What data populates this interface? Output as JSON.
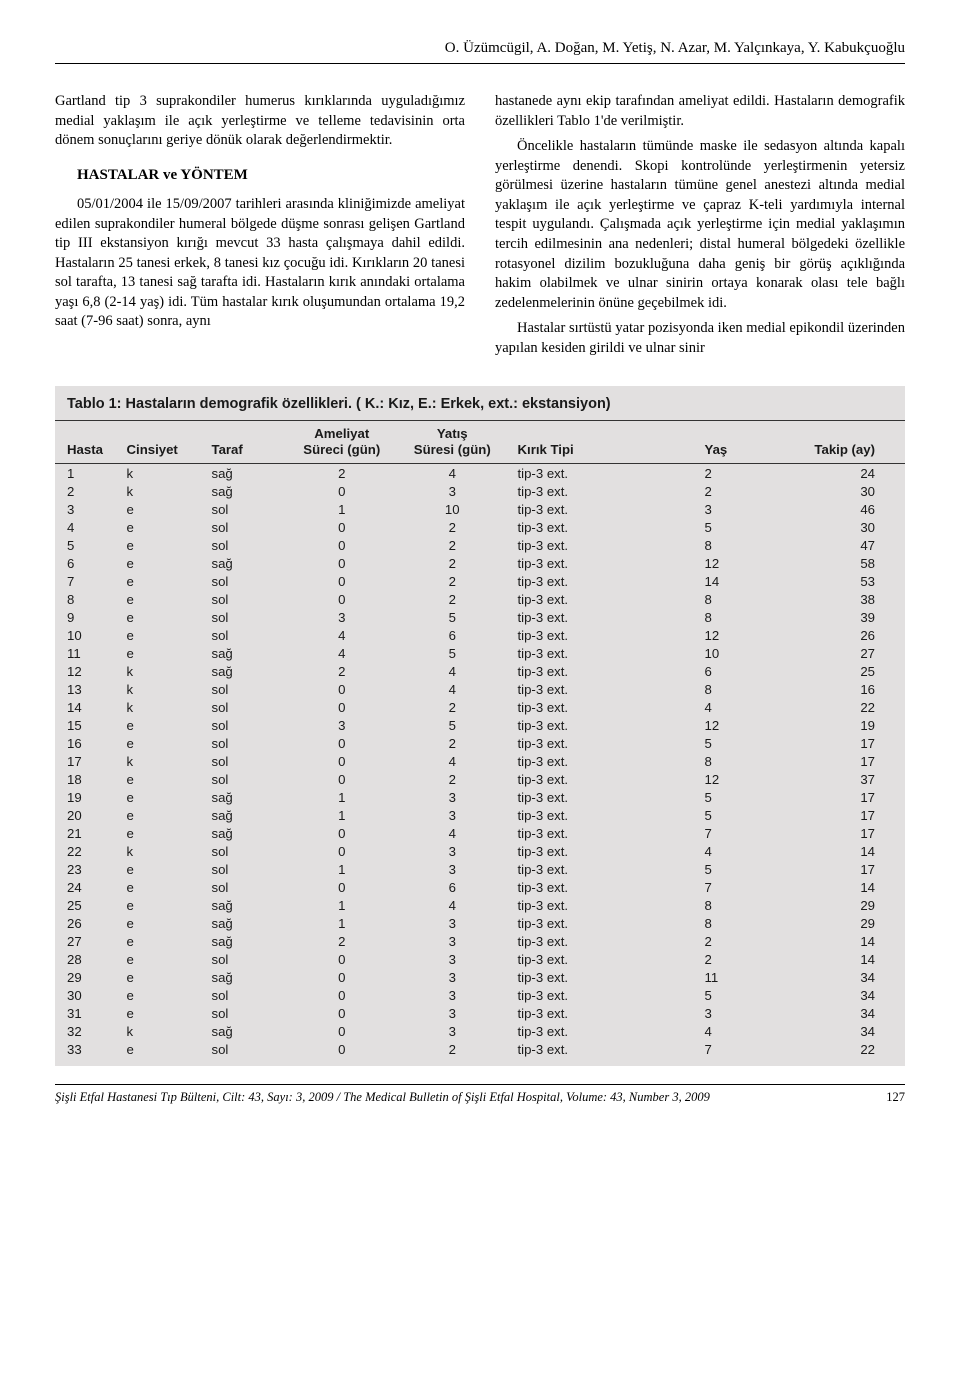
{
  "header": {
    "authors": "O. Üzümcügil, A. Doğan, M. Yetiş, N. Azar, M. Yalçınkaya, Y. Kabukçuoğlu"
  },
  "body": {
    "left": {
      "p1": "Gartland tip 3 suprakondiler humerus kırıklarında uyguladığımız medial yaklaşım ile açık yerleştirme ve telleme tedavisinin orta dönem sonuçlarını geriye dönük olarak değerlendirmektir.",
      "h1": "HASTALAR ve YÖNTEM",
      "p2": "05/01/2004 ile 15/09/2007 tarihleri arasında kliniğimizde ameliyat edilen suprakondiler humeral bölgede düşme sonrası gelişen Gartland tip III ekstansiyon kırığı mevcut 33 hasta çalışmaya dahil edildi. Hastaların 25 tanesi erkek, 8 tanesi kız çocuğu idi. Kırıkların 20 tanesi sol tarafta, 13 tanesi sağ tarafta idi. Hastaların kırık anındaki ortalama yaşı 6,8 (2-14 yaş) idi. Tüm hastalar kırık oluşumundan ortalama 19,2 saat (7-96 saat) sonra, aynı"
    },
    "right": {
      "p1": "hastanede aynı ekip tarafından ameliyat edildi. Hastaların demografik özellikleri Tablo 1'de verilmiştir.",
      "p2": "Öncelikle hastaların tümünde maske ile sedasyon altında kapalı yerleştirme denendi. Skopi kontrolünde yerleştirmenin yetersiz görülmesi üzerine hastaların tümüne genel anestezi altında medial yaklaşım ile açık yerleştirme ve çapraz K-teli yardımıyla internal tespit uygulandı. Çalışmada açık yerleştirme için medial yaklaşımın tercih edilmesinin ana nedenleri; distal humeral bölgedeki özellikle rotasyonel dizilim bozukluğuna daha geniş bir görüş açıklığında hakim olabilmek ve ulnar sinirin ortaya konarak olası tele bağlı zedelenmelerinin önüne geçebilmek idi.",
      "p3": "Hastalar sırtüstü yatar pozisyonda iken medial epikondil üzerinden yapılan kesiden girildi ve ulnar sinir"
    }
  },
  "table": {
    "caption": "Tablo 1: Hastaların demografik özellikleri. ( K.: Kız, E.: Erkek, ext.: ekstansiyon)",
    "headers": {
      "hasta": "Hasta",
      "cinsiyet": "Cinsiyet",
      "taraf": "Taraf",
      "ameliyat1": "Ameliyat",
      "ameliyat2": "Süreci (gün)",
      "yatis1": "Yatış",
      "yatis2": "Süresi (gün)",
      "tipi": "Kırık Tipi",
      "yas": "Yaş",
      "takip": "Takip (ay)"
    },
    "rows": [
      [
        "1",
        "k",
        "sağ",
        "2",
        "4",
        "tip-3 ext.",
        "2",
        "24"
      ],
      [
        "2",
        "k",
        "sağ",
        "0",
        "3",
        "tip-3 ext.",
        "2",
        "30"
      ],
      [
        "3",
        "e",
        "sol",
        "1",
        "10",
        "tip-3 ext.",
        "3",
        "46"
      ],
      [
        "4",
        "e",
        "sol",
        "0",
        "2",
        "tip-3 ext.",
        "5",
        "30"
      ],
      [
        "5",
        "e",
        "sol",
        "0",
        "2",
        "tip-3 ext.",
        "8",
        "47"
      ],
      [
        "6",
        "e",
        "sağ",
        "0",
        "2",
        "tip-3 ext.",
        "12",
        "58"
      ],
      [
        "7",
        "e",
        "sol",
        "0",
        "2",
        "tip-3 ext.",
        "14",
        "53"
      ],
      [
        "8",
        "e",
        "sol",
        "0",
        "2",
        "tip-3 ext.",
        "8",
        "38"
      ],
      [
        "9",
        "e",
        "sol",
        "3",
        "5",
        "tip-3 ext.",
        "8",
        "39"
      ],
      [
        "10",
        "e",
        "sol",
        "4",
        "6",
        "tip-3 ext.",
        "12",
        "26"
      ],
      [
        "11",
        "e",
        "sağ",
        "4",
        "5",
        "tip-3 ext.",
        "10",
        "27"
      ],
      [
        "12",
        "k",
        "sağ",
        "2",
        "4",
        "tip-3 ext.",
        "6",
        "25"
      ],
      [
        "13",
        "k",
        "sol",
        "0",
        "4",
        "tip-3 ext.",
        "8",
        "16"
      ],
      [
        "14",
        "k",
        "sol",
        "0",
        "2",
        "tip-3 ext.",
        "4",
        "22"
      ],
      [
        "15",
        "e",
        "sol",
        "3",
        "5",
        "tip-3 ext.",
        "12",
        "19"
      ],
      [
        "16",
        "e",
        "sol",
        "0",
        "2",
        "tip-3 ext.",
        "5",
        "17"
      ],
      [
        "17",
        "k",
        "sol",
        "0",
        "4",
        "tip-3 ext.",
        "8",
        "17"
      ],
      [
        "18",
        "e",
        "sol",
        "0",
        "2",
        "tip-3 ext.",
        "12",
        "37"
      ],
      [
        "19",
        "e",
        "sağ",
        "1",
        "3",
        "tip-3 ext.",
        "5",
        "17"
      ],
      [
        "20",
        "e",
        "sağ",
        "1",
        "3",
        "tip-3 ext.",
        "5",
        "17"
      ],
      [
        "21",
        "e",
        "sağ",
        "0",
        "4",
        "tip-3 ext.",
        "7",
        "17"
      ],
      [
        "22",
        "k",
        "sol",
        "0",
        "3",
        "tip-3 ext.",
        "4",
        "14"
      ],
      [
        "23",
        "e",
        "sol",
        "1",
        "3",
        "tip-3 ext.",
        "5",
        "17"
      ],
      [
        "24",
        "e",
        "sol",
        "0",
        "6",
        "tip-3 ext.",
        "7",
        "14"
      ],
      [
        "25",
        "e",
        "sağ",
        "1",
        "4",
        "tip-3 ext.",
        "8",
        "29"
      ],
      [
        "26",
        "e",
        "sağ",
        "1",
        "3",
        "tip-3 ext.",
        "8",
        "29"
      ],
      [
        "27",
        "e",
        "sağ",
        "2",
        "3",
        "tip-3 ext.",
        "2",
        "14"
      ],
      [
        "28",
        "e",
        "sol",
        "0",
        "3",
        "tip-3 ext.",
        "2",
        "14"
      ],
      [
        "29",
        "e",
        "sağ",
        "0",
        "3",
        "tip-3 ext.",
        "11",
        "34"
      ],
      [
        "30",
        "e",
        "sol",
        "0",
        "3",
        "tip-3 ext.",
        "5",
        "34"
      ],
      [
        "31",
        "e",
        "sol",
        "0",
        "3",
        "tip-3 ext.",
        "3",
        "34"
      ],
      [
        "32",
        "k",
        "sağ",
        "0",
        "3",
        "tip-3 ext.",
        "4",
        "34"
      ],
      [
        "33",
        "e",
        "sol",
        "0",
        "2",
        "tip-3 ext.",
        "7",
        "22"
      ]
    ]
  },
  "footer": {
    "citation": "Şişli Etfal Hastanesi Tıp Bülteni, Cilt: 43, Sayı: 3, 2009 / The Medical Bulletin of Şişli Etfal Hospital, Volume: 43, Number 3, 2009",
    "page": "127"
  }
}
